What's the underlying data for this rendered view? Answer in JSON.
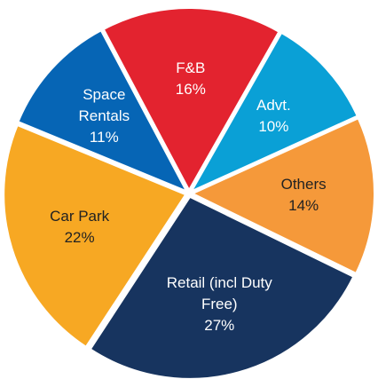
{
  "chart_data": {
    "type": "pie",
    "categories": [
      "F&B",
      "Advt.",
      "Others",
      "Retail (incl Duty Free)",
      "Car Park",
      "Space Rentals"
    ],
    "values": [
      16,
      10,
      14,
      27,
      22,
      11
    ],
    "value_labels": [
      "16%",
      "10%",
      "14%",
      "27%",
      "22%",
      "11%"
    ],
    "colors": [
      "#e3232f",
      "#0aa0d6",
      "#f5993a",
      "#17345f",
      "#f7a823",
      "#0665b5"
    ],
    "start_angle": -28
  }
}
